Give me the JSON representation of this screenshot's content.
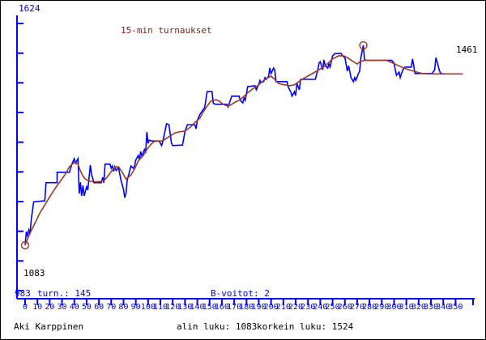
{
  "chart": {
    "title": "15-min turnaukset",
    "labels": {
      "y_max": "1624",
      "min_marker": "1083",
      "axis_origin": "983",
      "tournaments": "turn.: 145",
      "b_wins": "B-voitot: 2",
      "final_value": "1461"
    }
  },
  "status_bar": {
    "player": "Aki Karppinen",
    "lowest": "alin luku: 1083",
    "highest": "korkein luku: 1524"
  },
  "colors": {
    "axis_blue": "#0000ff",
    "line_blue": "#0000ff",
    "line_maroon": "#9c3a24",
    "title_maroon": "#7c2319",
    "text_black": "#000000",
    "background": "#ffffff",
    "border": "#000000"
  },
  "chart_data": {
    "type": "line",
    "title": "15-min turnaukset",
    "xlabel": "",
    "ylabel": "",
    "grid": false,
    "legend": false,
    "x_axis": {
      "min": 0,
      "max": 350,
      "tick_step": 10,
      "tick_labels": [
        0,
        10,
        20,
        30,
        40,
        50,
        60,
        70,
        80,
        90,
        100,
        110,
        120,
        130,
        140,
        150,
        160,
        170,
        180,
        190,
        200,
        210,
        220,
        230,
        240,
        250,
        260,
        270,
        280,
        290,
        300,
        310,
        320,
        330,
        340,
        350
      ]
    },
    "y_axis": {
      "min": 983,
      "max": 1624,
      "unlabeled_tick_count": 10
    },
    "series": [
      {
        "name": "tournament-rating",
        "color_key": "line_blue",
        "points": [
          [
            0,
            1083
          ],
          [
            1,
            1113
          ],
          [
            2,
            1104
          ],
          [
            3,
            1117
          ],
          [
            4,
            1108
          ],
          [
            5,
            1140
          ],
          [
            7,
            1179
          ],
          [
            16,
            1181
          ],
          [
            17,
            1221
          ],
          [
            26,
            1221
          ],
          [
            26,
            1244
          ],
          [
            36,
            1244
          ],
          [
            38,
            1262
          ],
          [
            40,
            1274
          ],
          [
            41,
            1264
          ],
          [
            43,
            1274
          ],
          [
            44,
            1197
          ],
          [
            45,
            1222
          ],
          [
            46,
            1192
          ],
          [
            47,
            1215
          ],
          [
            48,
            1192
          ],
          [
            50,
            1212
          ],
          [
            51,
            1205
          ],
          [
            53,
            1260
          ],
          [
            54,
            1240
          ],
          [
            56,
            1221
          ],
          [
            62,
            1221
          ],
          [
            63,
            1233
          ],
          [
            64,
            1221
          ],
          [
            65,
            1262
          ],
          [
            69,
            1262
          ],
          [
            70,
            1253
          ],
          [
            71,
            1258
          ],
          [
            72,
            1246
          ],
          [
            73,
            1256
          ],
          [
            74,
            1248
          ],
          [
            76,
            1254
          ],
          [
            78,
            1226
          ],
          [
            79,
            1217
          ],
          [
            80,
            1206
          ],
          [
            81,
            1188
          ],
          [
            82,
            1197
          ],
          [
            83,
            1226
          ],
          [
            85,
            1247
          ],
          [
            86,
            1258
          ],
          [
            88,
            1253
          ],
          [
            89,
            1258
          ],
          [
            90,
            1271
          ],
          [
            92,
            1281
          ],
          [
            93,
            1272
          ],
          [
            94,
            1290
          ],
          [
            95,
            1279
          ],
          [
            97,
            1294
          ],
          [
            98,
            1287
          ],
          [
            99,
            1333
          ],
          [
            100,
            1308
          ],
          [
            101,
            1315
          ],
          [
            103,
            1313
          ],
          [
            109,
            1313
          ],
          [
            111,
            1303
          ],
          [
            112,
            1312
          ],
          [
            115,
            1351
          ],
          [
            117,
            1349
          ],
          [
            119,
            1308
          ],
          [
            120,
            1303
          ],
          [
            128,
            1304
          ],
          [
            129,
            1319
          ],
          [
            130,
            1335
          ],
          [
            132,
            1349
          ],
          [
            138,
            1349
          ],
          [
            139,
            1340
          ],
          [
            140,
            1358
          ],
          [
            142,
            1371
          ],
          [
            144,
            1379
          ],
          [
            146,
            1387
          ],
          [
            148,
            1422
          ],
          [
            152,
            1422
          ],
          [
            153,
            1396
          ],
          [
            155,
            1394
          ],
          [
            164,
            1394
          ],
          [
            165,
            1388
          ],
          [
            167,
            1404
          ],
          [
            168,
            1412
          ],
          [
            174,
            1412
          ],
          [
            175,
            1403
          ],
          [
            177,
            1397
          ],
          [
            178,
            1408
          ],
          [
            179,
            1403
          ],
          [
            181,
            1433
          ],
          [
            187,
            1435
          ],
          [
            188,
            1426
          ],
          [
            190,
            1438
          ],
          [
            191,
            1447
          ],
          [
            192,
            1442
          ],
          [
            194,
            1444
          ],
          [
            195,
            1453
          ],
          [
            196,
            1449
          ],
          [
            198,
            1456
          ],
          [
            199,
            1474
          ],
          [
            200,
            1462
          ],
          [
            202,
            1474
          ],
          [
            203,
            1470
          ],
          [
            204,
            1444
          ],
          [
            213,
            1444
          ],
          [
            214,
            1432
          ],
          [
            216,
            1421
          ],
          [
            217,
            1412
          ],
          [
            219,
            1422
          ],
          [
            220,
            1413
          ],
          [
            221,
            1440
          ],
          [
            223,
            1426
          ],
          [
            224,
            1449
          ],
          [
            236,
            1449
          ],
          [
            238,
            1470
          ],
          [
            239,
            1485
          ],
          [
            240,
            1488
          ],
          [
            242,
            1470
          ],
          [
            243,
            1492
          ],
          [
            244,
            1479
          ],
          [
            246,
            1474
          ],
          [
            247,
            1483
          ],
          [
            248,
            1476
          ],
          [
            250,
            1501
          ],
          [
            252,
            1506
          ],
          [
            257,
            1506
          ],
          [
            258,
            1501
          ],
          [
            260,
            1497
          ],
          [
            262,
            1467
          ],
          [
            263,
            1479
          ],
          [
            264,
            1467
          ],
          [
            265,
            1453
          ],
          [
            267,
            1444
          ],
          [
            268,
            1453
          ],
          [
            269,
            1447
          ],
          [
            271,
            1462
          ],
          [
            272,
            1467
          ],
          [
            273,
            1497
          ],
          [
            275,
            1524
          ],
          [
            276,
            1492
          ],
          [
            277,
            1491
          ],
          [
            298,
            1491
          ],
          [
            300,
            1485
          ],
          [
            301,
            1470
          ],
          [
            302,
            1458
          ],
          [
            304,
            1465
          ],
          [
            305,
            1453
          ],
          [
            306,
            1462
          ],
          [
            308,
            1474
          ],
          [
            309,
            1476
          ],
          [
            314,
            1476
          ],
          [
            315,
            1494
          ],
          [
            316,
            1479
          ],
          [
            317,
            1462
          ],
          [
            331,
            1462
          ],
          [
            333,
            1470
          ],
          [
            334,
            1497
          ],
          [
            335,
            1488
          ],
          [
            337,
            1467
          ],
          [
            338,
            1462
          ],
          [
            341,
            1461
          ]
        ]
      },
      {
        "name": "smoothed-rating",
        "color_key": "line_maroon",
        "points": [
          [
            0,
            1083
          ],
          [
            3,
            1104
          ],
          [
            7,
            1126
          ],
          [
            12,
            1154
          ],
          [
            16,
            1172
          ],
          [
            21,
            1194
          ],
          [
            26,
            1215
          ],
          [
            32,
            1237
          ],
          [
            36,
            1256
          ],
          [
            40,
            1266
          ],
          [
            43,
            1262
          ],
          [
            45,
            1247
          ],
          [
            47,
            1236
          ],
          [
            49,
            1229
          ],
          [
            53,
            1224
          ],
          [
            58,
            1223
          ],
          [
            62,
            1224
          ],
          [
            65,
            1228
          ],
          [
            68,
            1238
          ],
          [
            71,
            1249
          ],
          [
            74,
            1256
          ],
          [
            76,
            1256
          ],
          [
            79,
            1244
          ],
          [
            82,
            1229
          ],
          [
            86,
            1238
          ],
          [
            89,
            1251
          ],
          [
            92,
            1269
          ],
          [
            96,
            1281
          ],
          [
            99,
            1294
          ],
          [
            102,
            1305
          ],
          [
            105,
            1312
          ],
          [
            109,
            1313
          ],
          [
            112,
            1313
          ],
          [
            115,
            1319
          ],
          [
            119,
            1326
          ],
          [
            122,
            1331
          ],
          [
            125,
            1333
          ],
          [
            130,
            1335
          ],
          [
            135,
            1345
          ],
          [
            138,
            1354
          ],
          [
            142,
            1363
          ],
          [
            145,
            1378
          ],
          [
            148,
            1390
          ],
          [
            151,
            1401
          ],
          [
            155,
            1404
          ],
          [
            158,
            1401
          ],
          [
            161,
            1394
          ],
          [
            165,
            1390
          ],
          [
            168,
            1394
          ],
          [
            171,
            1399
          ],
          [
            175,
            1404
          ],
          [
            178,
            1412
          ],
          [
            181,
            1419
          ],
          [
            184,
            1426
          ],
          [
            189,
            1435
          ],
          [
            193,
            1444
          ],
          [
            196,
            1451
          ],
          [
            200,
            1456
          ],
          [
            203,
            1449
          ],
          [
            206,
            1440
          ],
          [
            211,
            1437
          ],
          [
            215,
            1435
          ],
          [
            219,
            1437
          ],
          [
            224,
            1447
          ],
          [
            231,
            1458
          ],
          [
            237,
            1467
          ],
          [
            244,
            1479
          ],
          [
            250,
            1494
          ],
          [
            255,
            1501
          ],
          [
            259,
            1501
          ],
          [
            262,
            1497
          ],
          [
            267,
            1488
          ],
          [
            270,
            1483
          ],
          [
            273,
            1489
          ],
          [
            277,
            1491
          ],
          [
            294,
            1491
          ],
          [
            303,
            1480
          ],
          [
            310,
            1472
          ],
          [
            317,
            1466
          ],
          [
            323,
            1462
          ],
          [
            331,
            1461
          ],
          [
            356,
            1461
          ]
        ]
      }
    ],
    "markers": [
      {
        "x": 0,
        "y": 1083,
        "type": "circle"
      },
      {
        "x": 275,
        "y": 1524,
        "type": "circle"
      }
    ],
    "stats": {
      "tournaments": 145,
      "b_wins": 2,
      "lowest": 1083,
      "highest": 1524,
      "final": 1461,
      "start": 1083
    }
  }
}
